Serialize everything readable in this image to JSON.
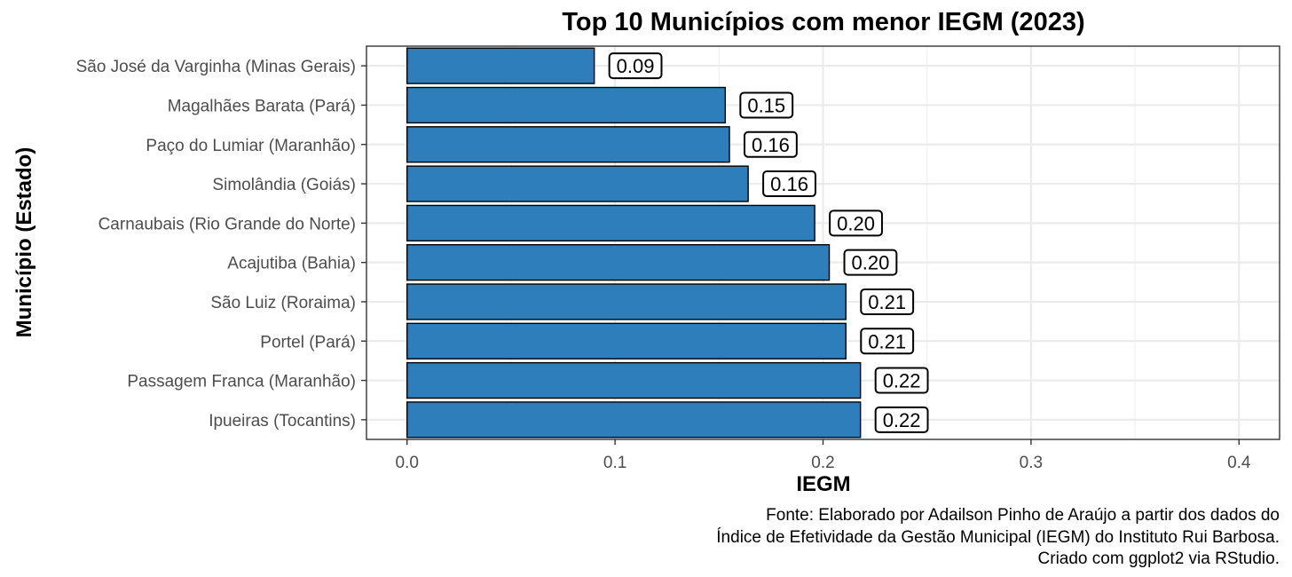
{
  "chart_data": {
    "type": "bar",
    "orientation": "horizontal",
    "title": "Top 10 Municípios com menor IEGM (2023)",
    "xlabel": "IEGM",
    "ylabel": "Município (Estado)",
    "categories": [
      "São José da Varginha (Minas Gerais)",
      "Magalhães Barata (Pará)",
      "Paço do Lumiar (Maranhão)",
      "Simolândia (Goiás)",
      "Carnaubais (Rio Grande do Norte)",
      "Acajutiba (Bahia)",
      "São Luiz (Roraima)",
      "Portel (Pará)",
      "Passagem Franca (Maranhão)",
      "Ipueiras (Tocantins)"
    ],
    "values": [
      0.09,
      0.153,
      0.155,
      0.164,
      0.196,
      0.203,
      0.211,
      0.211,
      0.218,
      0.218
    ],
    "value_labels": [
      "0.09",
      "0.15",
      "0.16",
      "0.16",
      "0.20",
      "0.20",
      "0.21",
      "0.21",
      "0.22",
      "0.22"
    ],
    "xlim": [
      -0.0195,
      0.4195
    ],
    "xticks": [
      0.0,
      0.1,
      0.2,
      0.3,
      0.4
    ],
    "xtick_labels": [
      "0.0",
      "0.1",
      "0.2",
      "0.3",
      "0.4"
    ],
    "grid": true,
    "bar_color": "#2E7EBB",
    "bar_outline": "#000000",
    "caption": [
      "Fonte: Elaborado por Adailson Pinho de Araújo a partir dos dados do",
      "Índice de Efetividade da Gestão Municipal (IEGM) do Instituto Rui Barbosa.",
      "Criado com ggplot2 via RStudio."
    ]
  }
}
